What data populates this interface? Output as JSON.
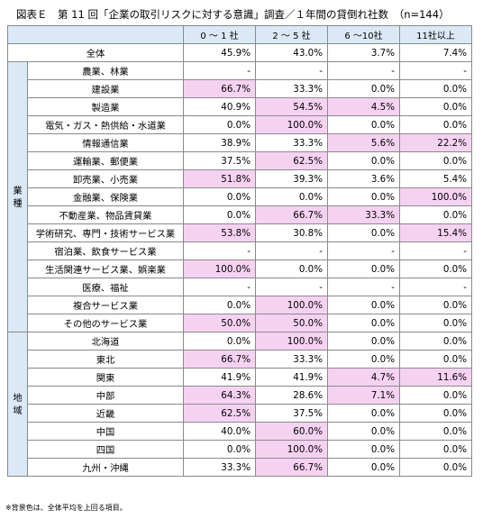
{
  "title": "図表Ｅ　第 11 回「企業の取引リスクに対する意識」調査／１年間の貸倒れ社数　（n=144）",
  "columns": [
    "0 ～ 1 社",
    "2 ～ 5 社",
    "6 ～10社",
    "11社以上"
  ],
  "total": {
    "label": "全体",
    "values": [
      "45.9%",
      "43.0%",
      "3.7%",
      "7.4%"
    ]
  },
  "groups": [
    {
      "name": [
        "業",
        "種"
      ],
      "rows": [
        {
          "label": "農業、林業",
          "values": [
            "-",
            "-",
            "-",
            "-"
          ],
          "highlight": [
            false,
            false,
            false,
            false
          ]
        },
        {
          "label": "建設業",
          "values": [
            "66.7%",
            "33.3%",
            "0.0%",
            "0.0%"
          ],
          "highlight": [
            true,
            false,
            false,
            false
          ]
        },
        {
          "label": "製造業",
          "values": [
            "40.9%",
            "54.5%",
            "4.5%",
            "0.0%"
          ],
          "highlight": [
            false,
            true,
            true,
            false
          ]
        },
        {
          "label": "電気・ガス・熱供給・水道業",
          "values": [
            "0.0%",
            "100.0%",
            "0.0%",
            "0.0%"
          ],
          "highlight": [
            false,
            true,
            false,
            false
          ]
        },
        {
          "label": "情報通信業",
          "values": [
            "38.9%",
            "33.3%",
            "5.6%",
            "22.2%"
          ],
          "highlight": [
            false,
            false,
            true,
            true
          ]
        },
        {
          "label": "運輸業、郵便業",
          "values": [
            "37.5%",
            "62.5%",
            "0.0%",
            "0.0%"
          ],
          "highlight": [
            false,
            true,
            false,
            false
          ]
        },
        {
          "label": "卸売業、小売業",
          "values": [
            "51.8%",
            "39.3%",
            "3.6%",
            "5.4%"
          ],
          "highlight": [
            true,
            false,
            false,
            false
          ]
        },
        {
          "label": "金融業、保険業",
          "values": [
            "0.0%",
            "0.0%",
            "0.0%",
            "100.0%"
          ],
          "highlight": [
            false,
            false,
            false,
            true
          ]
        },
        {
          "label": "不動産業、物品賃貸業",
          "values": [
            "0.0%",
            "66.7%",
            "33.3%",
            "0.0%"
          ],
          "highlight": [
            false,
            true,
            true,
            false
          ]
        },
        {
          "label": "学術研究、専門・技術サービス業",
          "values": [
            "53.8%",
            "30.8%",
            "0.0%",
            "15.4%"
          ],
          "highlight": [
            true,
            false,
            false,
            true
          ]
        },
        {
          "label": "宿泊業、飲食サービス業",
          "values": [
            "-",
            "-",
            "-",
            "-"
          ],
          "highlight": [
            false,
            false,
            false,
            false
          ]
        },
        {
          "label": "生活関連サービス業、娯楽業",
          "values": [
            "100.0%",
            "0.0%",
            "0.0%",
            "0.0%"
          ],
          "highlight": [
            true,
            false,
            false,
            false
          ]
        },
        {
          "label": "医療、福祉",
          "values": [
            "-",
            "-",
            "-",
            "-"
          ],
          "highlight": [
            false,
            false,
            false,
            false
          ]
        },
        {
          "label": "複合サービス業",
          "values": [
            "0.0%",
            "100.0%",
            "0.0%",
            "0.0%"
          ],
          "highlight": [
            false,
            true,
            false,
            false
          ]
        },
        {
          "label": "その他のサービス業",
          "values": [
            "50.0%",
            "50.0%",
            "0.0%",
            "0.0%"
          ],
          "highlight": [
            true,
            true,
            false,
            false
          ]
        }
      ]
    },
    {
      "name": [
        "地",
        "域"
      ],
      "rows": [
        {
          "label": "北海道",
          "values": [
            "0.0%",
            "100.0%",
            "0.0%",
            "0.0%"
          ],
          "highlight": [
            false,
            true,
            false,
            false
          ]
        },
        {
          "label": "東北",
          "values": [
            "66.7%",
            "33.3%",
            "0.0%",
            "0.0%"
          ],
          "highlight": [
            true,
            false,
            false,
            false
          ]
        },
        {
          "label": "関東",
          "values": [
            "41.9%",
            "41.9%",
            "4.7%",
            "11.6%"
          ],
          "highlight": [
            false,
            false,
            true,
            true
          ]
        },
        {
          "label": "中部",
          "values": [
            "64.3%",
            "28.6%",
            "7.1%",
            "0.0%"
          ],
          "highlight": [
            true,
            false,
            true,
            false
          ]
        },
        {
          "label": "近畿",
          "values": [
            "62.5%",
            "37.5%",
            "0.0%",
            "0.0%"
          ],
          "highlight": [
            true,
            false,
            false,
            false
          ]
        },
        {
          "label": "中国",
          "values": [
            "40.0%",
            "60.0%",
            "0.0%",
            "0.0%"
          ],
          "highlight": [
            false,
            true,
            false,
            false
          ]
        },
        {
          "label": "四国",
          "values": [
            "0.0%",
            "100.0%",
            "0.0%",
            "0.0%"
          ],
          "highlight": [
            false,
            true,
            false,
            false
          ]
        },
        {
          "label": "九州・沖縄",
          "values": [
            "33.3%",
            "66.7%",
            "0.0%",
            "0.0%"
          ],
          "highlight": [
            false,
            true,
            false,
            false
          ]
        }
      ]
    }
  ],
  "note": "※背景色は、全体平均を上回る項目。",
  "colors": {
    "header_bg": "#dbe9f6",
    "highlight_bg": "#f6d2f2",
    "border": "#8a8a8a"
  }
}
